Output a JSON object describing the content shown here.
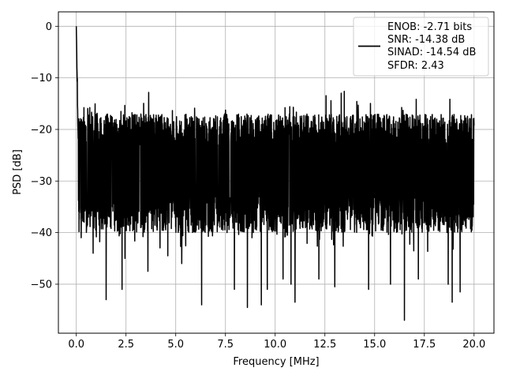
{
  "chart_data": {
    "type": "line",
    "xlabel": "Frequency [MHz]",
    "ylabel": "PSD [dB]",
    "xlim": [
      -0.9,
      21.0
    ],
    "ylim": [
      -59.5,
      2.8
    ],
    "x_ticks": [
      0.0,
      2.5,
      5.0,
      7.5,
      10.0,
      12.5,
      15.0,
      17.5,
      20.0
    ],
    "x_tick_labels": [
      "0.0",
      "2.5",
      "5.0",
      "7.5",
      "10.0",
      "12.5",
      "15.0",
      "17.5",
      "20.0"
    ],
    "y_ticks": [
      0,
      -10,
      -20,
      -30,
      -40,
      -50
    ],
    "y_tick_labels": [
      "0",
      "−10",
      "−20",
      "−30",
      "−40",
      "−50"
    ],
    "grid": true,
    "legend_position": "top-right",
    "series_color": "#000000",
    "series": [
      {
        "name": "",
        "x_range": [
          0.0,
          20.0
        ],
        "peak": {
          "x": 0.0,
          "y": 0.0
        },
        "noise_floor_mean": -28,
        "noise_upper": -17,
        "noise_lower": -39,
        "deep_nulls": [
          {
            "x": 0.25,
            "y": -41
          },
          {
            "x": 0.85,
            "y": -44
          },
          {
            "x": 1.5,
            "y": -53
          },
          {
            "x": 2.3,
            "y": -51
          },
          {
            "x": 2.45,
            "y": -45
          },
          {
            "x": 3.6,
            "y": -47.5
          },
          {
            "x": 4.6,
            "y": -44.5
          },
          {
            "x": 5.3,
            "y": -46
          },
          {
            "x": 6.3,
            "y": -54
          },
          {
            "x": 7.95,
            "y": -51
          },
          {
            "x": 8.6,
            "y": -54.5
          },
          {
            "x": 9.3,
            "y": -54
          },
          {
            "x": 9.6,
            "y": -51
          },
          {
            "x": 10.4,
            "y": -49
          },
          {
            "x": 10.8,
            "y": -50
          },
          {
            "x": 11.0,
            "y": -53.5
          },
          {
            "x": 12.2,
            "y": -49
          },
          {
            "x": 13.0,
            "y": -50.5
          },
          {
            "x": 14.7,
            "y": -51
          },
          {
            "x": 15.8,
            "y": -50
          },
          {
            "x": 16.5,
            "y": -57
          },
          {
            "x": 17.2,
            "y": -49
          },
          {
            "x": 18.7,
            "y": -50
          },
          {
            "x": 18.9,
            "y": -53.5
          },
          {
            "x": 19.3,
            "y": -51.5
          }
        ]
      }
    ],
    "legend_lines": [
      "ENOB: -2.71 bits",
      "SNR: -14.38 dB",
      "SINAD: -14.54 dB",
      "SFDR: 2.43"
    ]
  }
}
